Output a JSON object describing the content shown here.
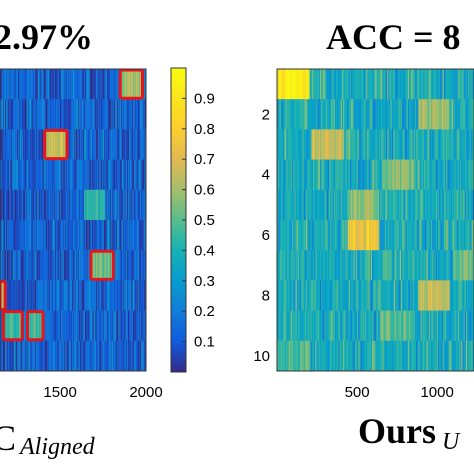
{
  "chart_data": [
    {
      "type": "heatmap",
      "title": "2.97%",
      "caption_main": "C",
      "caption_subscript": "Aligned",
      "x_ticks": [
        "1500",
        "2000"
      ],
      "x_range": [
        1150,
        2000
      ],
      "n_rows": 10,
      "colorbar_ticks": [
        "0.9",
        "0.8",
        "0.7",
        "0.6",
        "0.5",
        "0.4",
        "0.3",
        "0.2",
        "0.1"
      ],
      "color_range": [
        0.0,
        1.0
      ],
      "base_level": 0.12,
      "noise_level": 0.22,
      "blocks": [
        {
          "row": 1,
          "x_start": 1850,
          "x_end": 1980,
          "value": 0.58,
          "highlighted": true
        },
        {
          "row": 3,
          "x_start": 1410,
          "x_end": 1540,
          "value": 0.68,
          "highlighted": true
        },
        {
          "row": 5,
          "x_start": 1640,
          "x_end": 1760,
          "value": 0.42,
          "highlighted": false
        },
        {
          "row": 7,
          "x_start": 1680,
          "x_end": 1810,
          "value": 0.52,
          "highlighted": true
        },
        {
          "row": 8,
          "x_start": 1150,
          "x_end": 1180,
          "value": 0.62,
          "highlighted": true
        },
        {
          "row": 9,
          "x_start": 1170,
          "x_end": 1280,
          "value": 0.45,
          "highlighted": true
        },
        {
          "row": 9,
          "x_start": 1310,
          "x_end": 1400,
          "value": 0.48,
          "highlighted": true
        }
      ]
    },
    {
      "type": "heatmap",
      "title": "ACC = 8",
      "caption_main": "Ours",
      "caption_subscript": "U",
      "x_ticks": [
        "500",
        "1000"
      ],
      "y_ticks": [
        "2",
        "4",
        "6",
        "8",
        "10"
      ],
      "x_range": [
        0,
        1230
      ],
      "n_rows": 10,
      "color_range": [
        0.0,
        1.0
      ],
      "base_level": 0.38,
      "noise_level": 0.22,
      "blocks": [
        {
          "row": 1,
          "x_start": 0,
          "x_end": 200,
          "value": 0.93
        },
        {
          "row": 2,
          "x_start": 880,
          "x_end": 1080,
          "value": 0.58
        },
        {
          "row": 3,
          "x_start": 220,
          "x_end": 420,
          "value": 0.66
        },
        {
          "row": 4,
          "x_start": 660,
          "x_end": 860,
          "value": 0.56
        },
        {
          "row": 5,
          "x_start": 440,
          "x_end": 640,
          "value": 0.55
        },
        {
          "row": 6,
          "x_start": 440,
          "x_end": 640,
          "value": 0.74
        },
        {
          "row": 7,
          "x_start": 1100,
          "x_end": 1230,
          "value": 0.52
        },
        {
          "row": 8,
          "x_start": 880,
          "x_end": 1080,
          "value": 0.66
        },
        {
          "row": 9,
          "x_start": 660,
          "x_end": 860,
          "value": 0.5
        },
        {
          "row": 10,
          "x_start": 0,
          "x_end": 200,
          "value": 0.48
        }
      ]
    }
  ]
}
